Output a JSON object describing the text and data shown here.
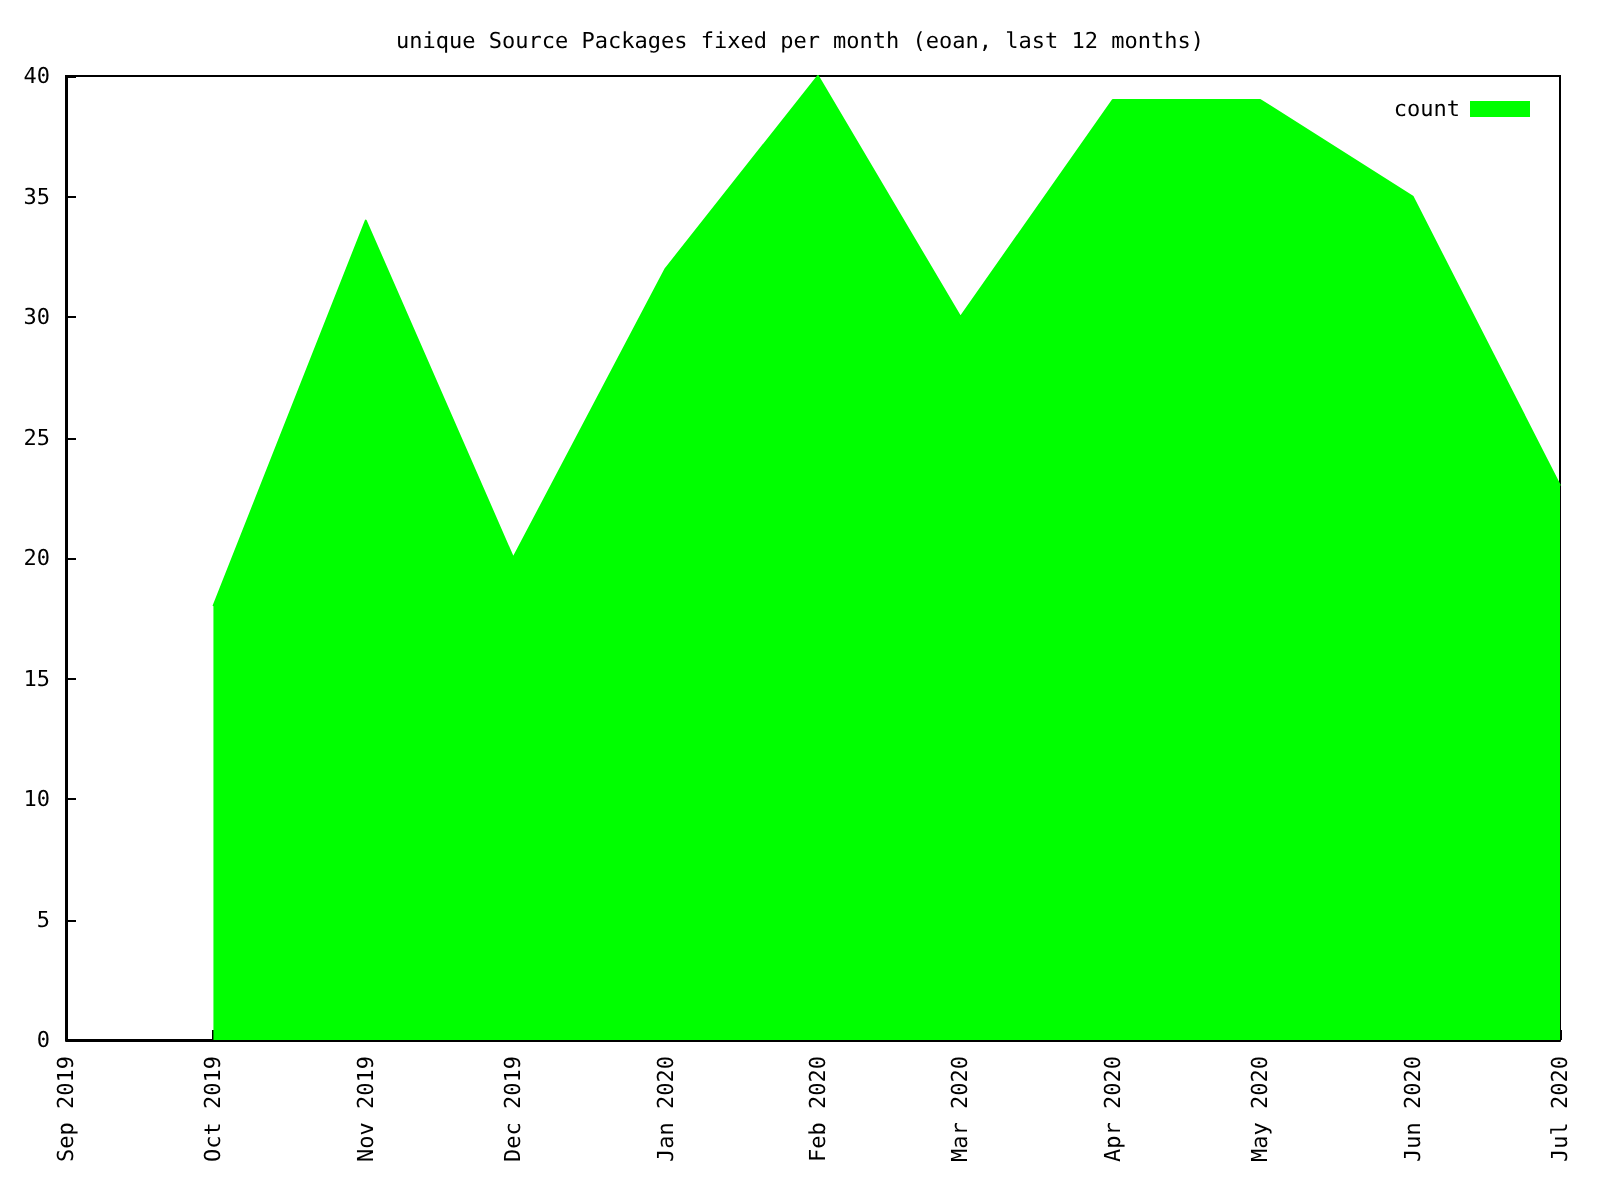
{
  "chart_data": {
    "type": "area",
    "title": "unique Source Packages fixed per month (eoan, last 12 months)",
    "x": [
      "2019-10",
      "2019-11",
      "2019-12",
      "2020-01",
      "2020-02",
      "2020-03",
      "2020-04",
      "2020-05",
      "2020-06",
      "2020-07"
    ],
    "series": [
      {
        "name": "count",
        "color": "#00ff00",
        "values": [
          18,
          34,
          20,
          32,
          40,
          30,
          39,
          39,
          35,
          23
        ]
      }
    ],
    "xlim": [
      "2019-09",
      "2020-07"
    ],
    "xticks": [
      {
        "value": "2019-09",
        "label": "Sep 2019"
      },
      {
        "value": "2019-10",
        "label": "Oct 2019"
      },
      {
        "value": "2019-11",
        "label": "Nov 2019"
      },
      {
        "value": "2019-12",
        "label": "Dec 2019"
      },
      {
        "value": "2020-01",
        "label": "Jan 2020"
      },
      {
        "value": "2020-02",
        "label": "Feb 2020"
      },
      {
        "value": "2020-03",
        "label": "Mar 2020"
      },
      {
        "value": "2020-04",
        "label": "Apr 2020"
      },
      {
        "value": "2020-05",
        "label": "May 2020"
      },
      {
        "value": "2020-06",
        "label": "Jun 2020"
      },
      {
        "value": "2020-07",
        "label": "Jul 2020"
      }
    ],
    "ylim": [
      0,
      40
    ],
    "yticks": [
      0,
      5,
      10,
      15,
      20,
      25,
      30,
      35,
      40
    ],
    "grid": false,
    "legend": "top right"
  }
}
